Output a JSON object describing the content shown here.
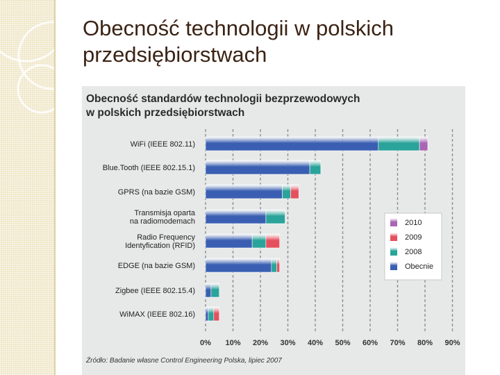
{
  "slide": {
    "title_lines": [
      "Obecność technologii w polskich",
      "przedsiębiorstwach"
    ]
  },
  "chart_data": {
    "type": "bar",
    "stacked": true,
    "orientation": "horizontal",
    "title_lines": [
      "Obecność standardów technologii bezprzewodowych",
      "w polskich przedsiębiorstwach"
    ],
    "categories": [
      [
        "WiFi (IEEE 802.11)"
      ],
      [
        "Blue.Tooth (IEEE 802.15.1)"
      ],
      [
        "GPRS (na bazie GSM)"
      ],
      [
        "Transmisja oparta",
        "na radiomodemach"
      ],
      [
        "Radio Frequency",
        "Identyfication (RFID)"
      ],
      [
        "EDGE (na bazie GSM)"
      ],
      [
        "Zigbee (IEEE 802.15.4)"
      ],
      [
        "WiMAX (IEEE 802.16)"
      ]
    ],
    "series": [
      {
        "name": "Obecnie",
        "color": "#3a5fb2",
        "values": [
          63,
          38,
          28,
          22,
          17,
          24,
          2,
          1
        ]
      },
      {
        "name": "2008",
        "color": "#2aa39a",
        "values": [
          15,
          4,
          3,
          7,
          5,
          2,
          3,
          2
        ]
      },
      {
        "name": "2009",
        "color": "#e5505e",
        "values": [
          0,
          0,
          3,
          0,
          5,
          1,
          0,
          2
        ]
      },
      {
        "name": "2010",
        "color": "#a966b4",
        "values": [
          3,
          0,
          0,
          0,
          0,
          0,
          0,
          0
        ]
      }
    ],
    "legend_order": [
      "2010",
      "2009",
      "2008",
      "Obecnie"
    ],
    "legend_position": "right",
    "x_ticks": [
      "0%",
      "10%",
      "20%",
      "30%",
      "40%",
      "50%",
      "60%",
      "70%",
      "80%",
      "90%"
    ],
    "xlim": [
      0,
      90
    ],
    "grid": "vertical-dashed",
    "source": "Źródło: Badanie własne Control Engineering Polska, lipiec 2007"
  }
}
